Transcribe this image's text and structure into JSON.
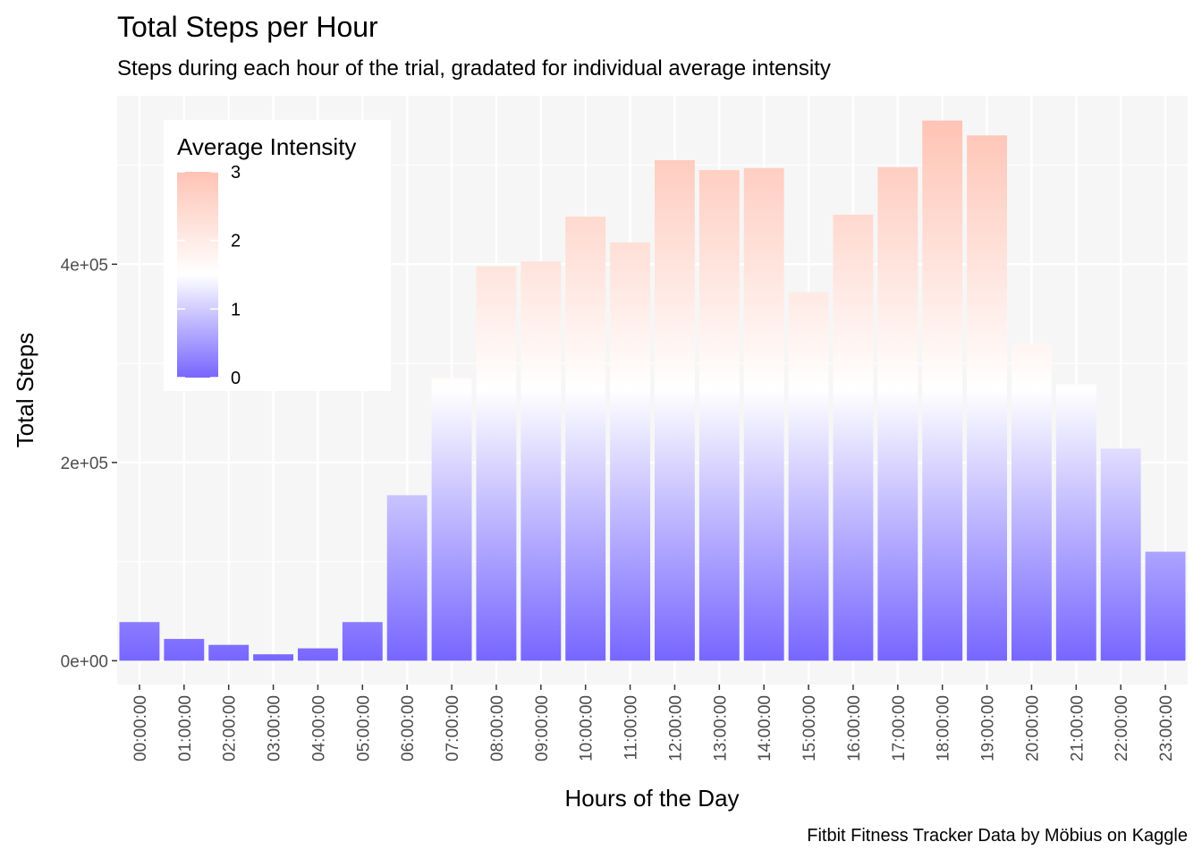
{
  "chart_data": {
    "type": "bar",
    "title": "Total Steps per Hour",
    "subtitle": "Steps during each hour of the trial, gradated for individual average intensity",
    "xlabel": "Hours of the Day",
    "ylabel": "Total Steps",
    "caption": "Fitbit Fitness Tracker Data by Möbius on Kaggle",
    "categories": [
      "00:00:00",
      "01:00:00",
      "02:00:00",
      "03:00:00",
      "04:00:00",
      "05:00:00",
      "06:00:00",
      "07:00:00",
      "08:00:00",
      "09:00:00",
      "10:00:00",
      "11:00:00",
      "12:00:00",
      "13:00:00",
      "14:00:00",
      "15:00:00",
      "16:00:00",
      "17:00:00",
      "18:00:00",
      "19:00:00",
      "20:00:00",
      "21:00:00",
      "22:00:00",
      "23:00:00"
    ],
    "values": [
      39000,
      22000,
      16000,
      6500,
      12500,
      39000,
      167000,
      285000,
      398000,
      403000,
      448000,
      422000,
      505000,
      495000,
      497000,
      372000,
      450000,
      498000,
      545000,
      530000,
      320000,
      279000,
      214000,
      110000
    ],
    "ylim": [
      -24000,
      570000
    ],
    "y_ticks": [
      0,
      200000,
      400000
    ],
    "y_tick_labels": [
      "0e+00",
      "2e+05",
      "4e+05"
    ],
    "grid": true,
    "legend": {
      "title": "Average Intensity",
      "placement": "top-left",
      "range": [
        0,
        3
      ],
      "midpoint": 1.5,
      "ticks": [
        "0",
        "1",
        "2",
        "3"
      ],
      "low_color": "#7766ff",
      "mid_color": "#ffffff",
      "high_color": "#ffc3b4"
    },
    "panel_background": "#f6f6f6",
    "grid_color": "#ffffff"
  }
}
